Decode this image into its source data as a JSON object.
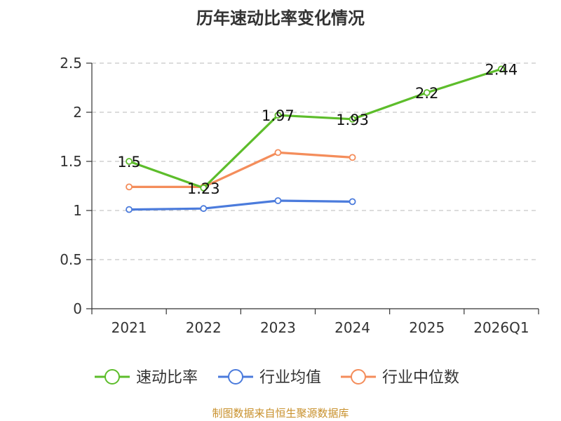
{
  "chart_data": {
    "type": "line",
    "title": "历年速动比率变化情况",
    "categories": [
      "2021",
      "2022",
      "2023",
      "2024",
      "2025",
      "2026Q1"
    ],
    "series": [
      {
        "name": "速动比率",
        "color": "#5dbd2b",
        "values": [
          1.5,
          1.23,
          1.97,
          1.93,
          2.2,
          2.44
        ],
        "show_labels": true
      },
      {
        "name": "行业均值",
        "color": "#4b7bdc",
        "values": [
          1.01,
          1.02,
          1.1,
          1.09,
          null,
          null
        ],
        "show_labels": false
      },
      {
        "name": "行业中位数",
        "color": "#f48d5b",
        "values": [
          1.24,
          1.24,
          1.59,
          1.54,
          null,
          null
        ],
        "show_labels": false
      }
    ],
    "ylim": [
      0,
      2.5
    ],
    "yticks": [
      0,
      0.5,
      1,
      1.5,
      2,
      2.5
    ],
    "xlabel": "",
    "ylabel": "",
    "grid": true,
    "legend_position": "bottom"
  },
  "source": {
    "text": "制图数据来自恒生聚源数据库",
    "color": "#c8902b"
  }
}
